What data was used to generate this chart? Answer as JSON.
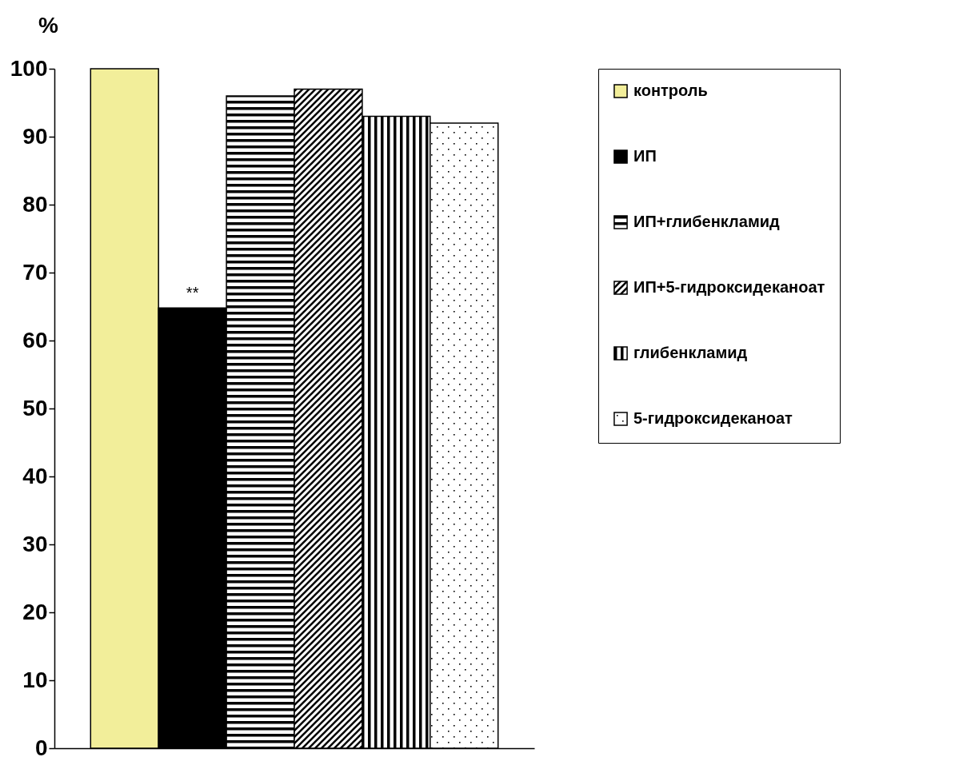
{
  "chart_data": {
    "type": "bar",
    "ylabel": "%",
    "categories": [
      null
    ],
    "ylim": [
      0,
      100
    ],
    "yticks": [
      0,
      10,
      20,
      30,
      40,
      50,
      60,
      70,
      80,
      90,
      100
    ],
    "grid": false,
    "legend": "right",
    "tick_labels": "y",
    "series": [
      {
        "name": "контроль",
        "color": "#f2ee9a",
        "values": [
          100
        ]
      },
      {
        "name": "ИП",
        "color": "#000000",
        "values": [
          64.8
        ]
      },
      {
        "name": "ИП+глибенкламид",
        "color": "#000000",
        "values": [
          96
        ]
      },
      {
        "name": "ИП+5-гидроксидеканоат",
        "color": "#000000",
        "values": [
          97
        ]
      },
      {
        "name": "глибенкламид",
        "color": "#000000",
        "values": [
          93
        ]
      },
      {
        "name": "5-гидроксидеканоат",
        "color": "#000000",
        "values": [
          92
        ]
      }
    ],
    "annotations": [
      {
        "text": "**",
        "y": 64.8
      }
    ]
  }
}
